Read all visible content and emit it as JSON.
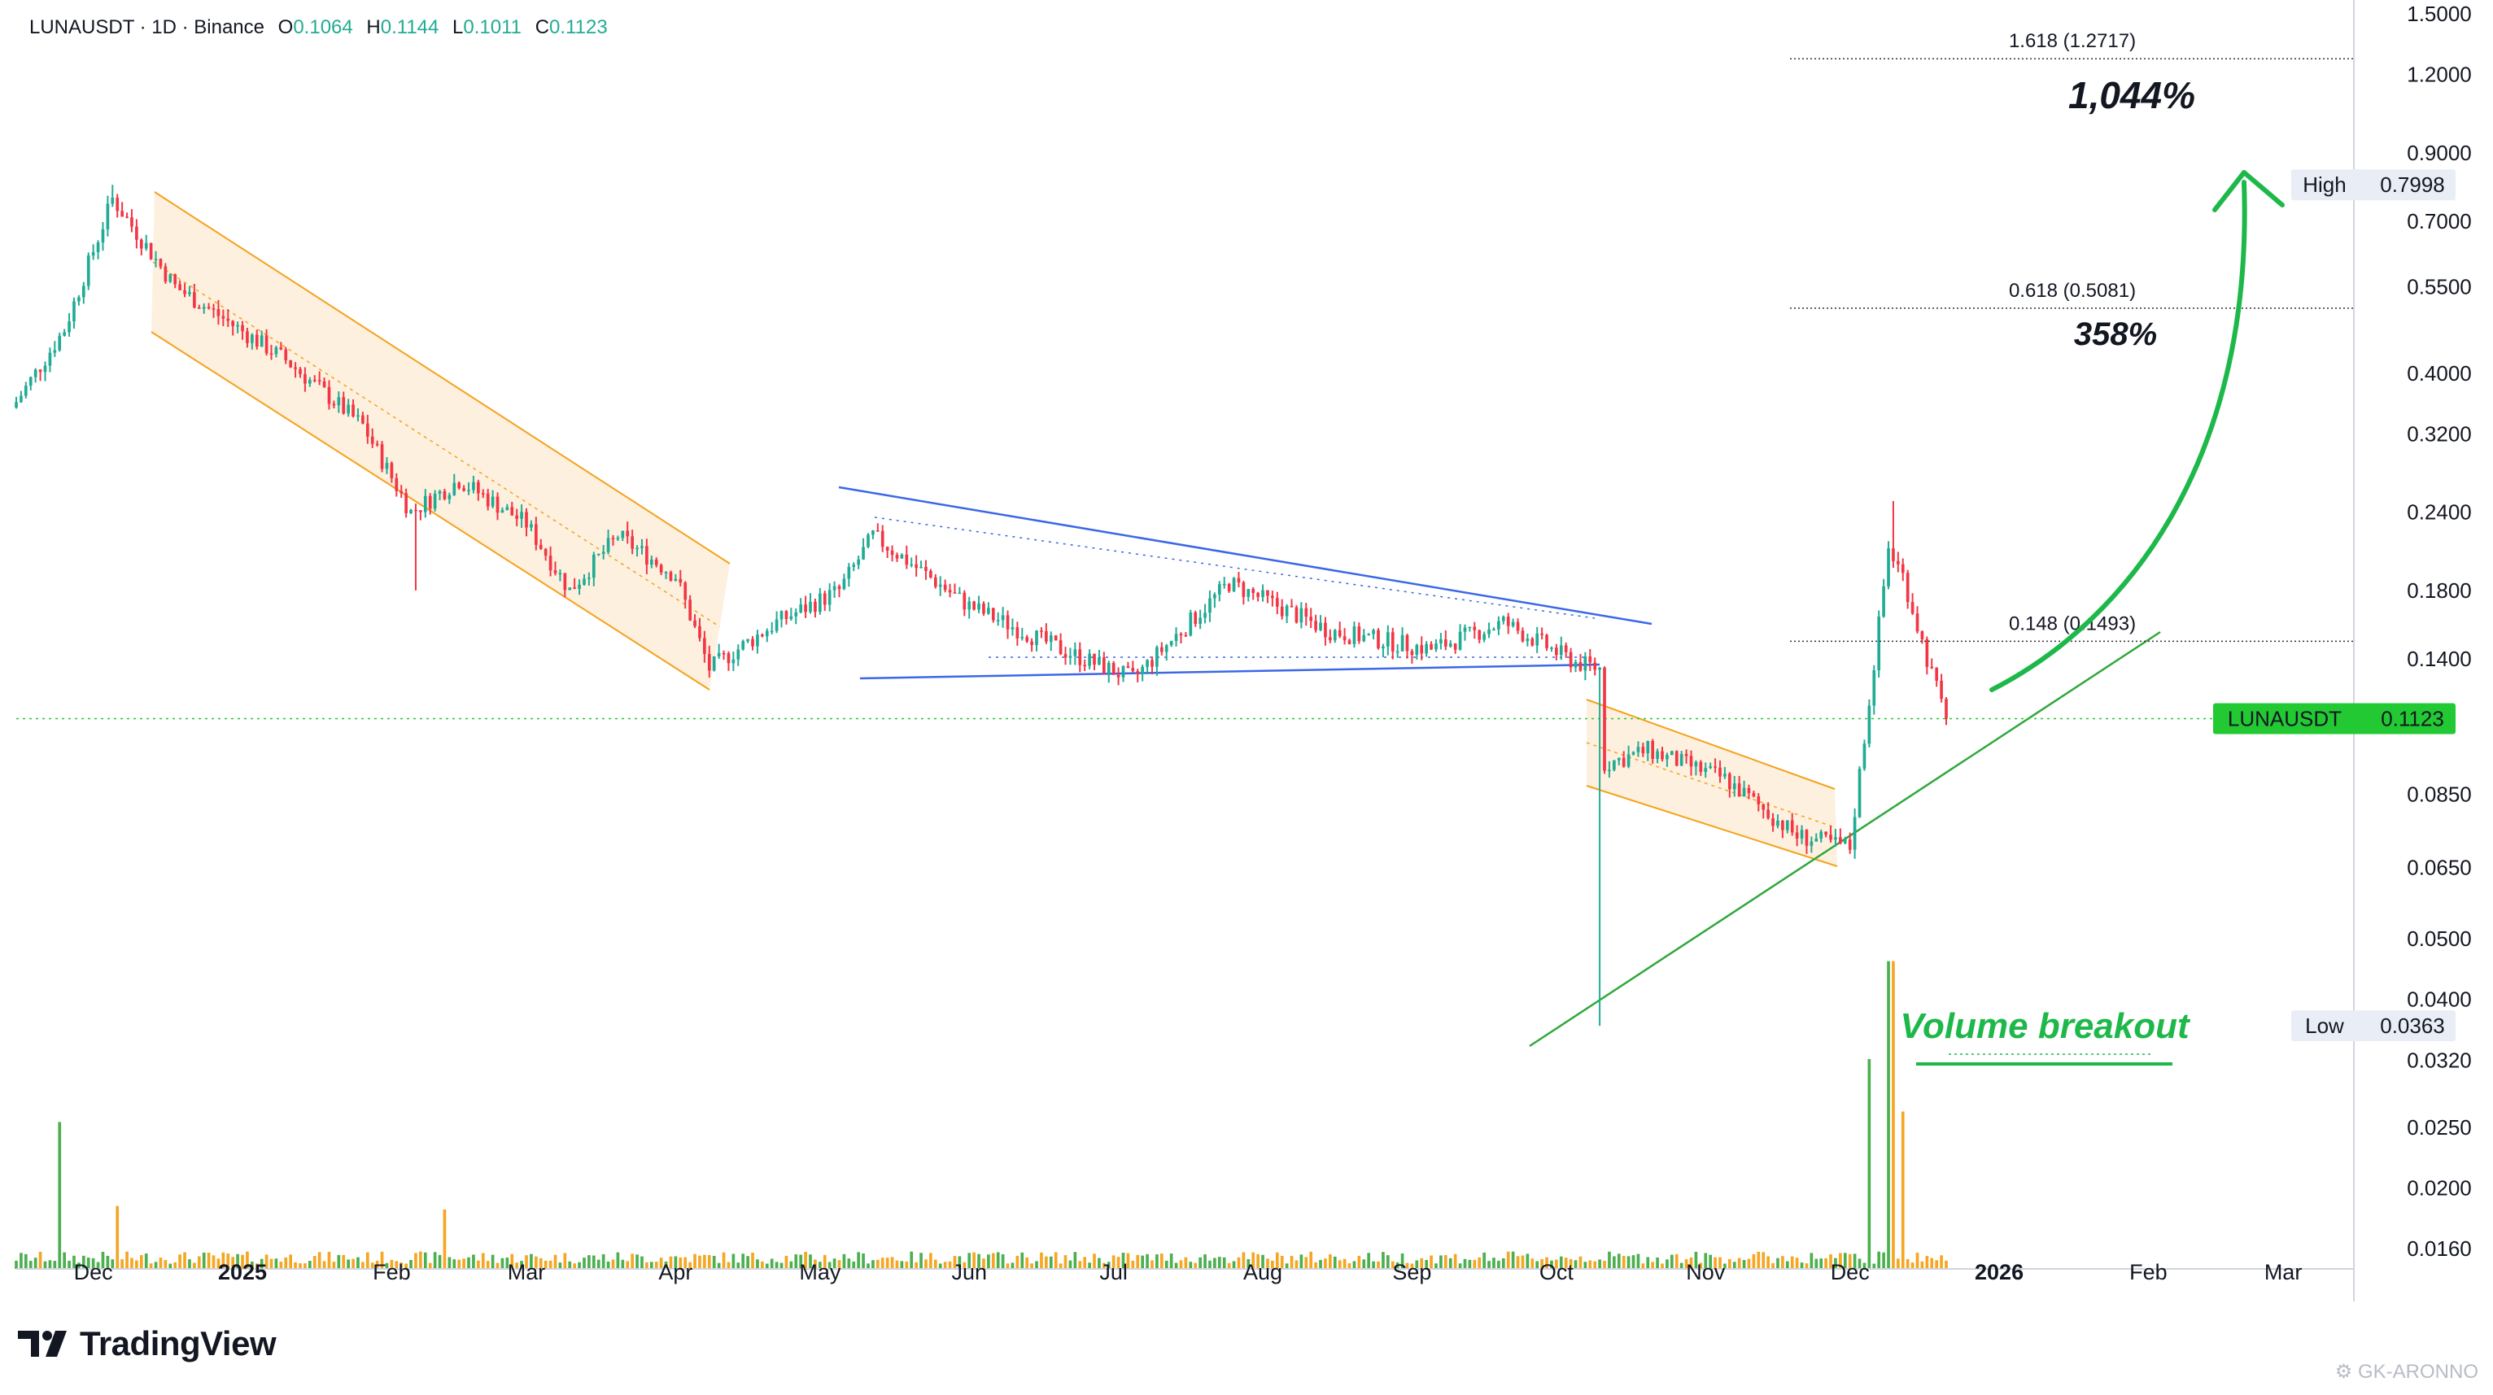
{
  "header": {
    "symbol_line": "LUNAUSDT · 1D · Binance",
    "open_label": "O",
    "open_value": "0.1064",
    "high_label": "H",
    "high_value": "0.1144",
    "low_label": "L",
    "low_value": "0.1011",
    "close_label": "C",
    "close_value": "0.1123"
  },
  "colors": {
    "up": "#22ab94",
    "down": "#f23645",
    "price_tag": "#22c933",
    "annotation_green": "#1eb84a",
    "channel": "#f5a21b",
    "wedge": "#3b67e8"
  },
  "chart_data": {
    "type": "candlestick",
    "yscale": "log",
    "ylim": [
      0.0135,
      1.5
    ],
    "x_ticks": [
      "Dec",
      "2025",
      "Feb",
      "Mar",
      "Apr",
      "May",
      "Jun",
      "Jul",
      "Aug",
      "Sep",
      "Oct",
      "Nov",
      "Dec",
      "2026",
      "Feb",
      "Mar"
    ],
    "y_ticks": [
      "1.5000",
      "1.2000",
      "0.9000",
      "0.7000",
      "0.5500",
      "0.4000",
      "0.3200",
      "0.2400",
      "0.1800",
      "0.1400",
      "0.0850",
      "0.0650",
      "0.0500",
      "0.0400",
      "0.0320",
      "0.0250",
      "0.0200",
      "0.0160"
    ],
    "price_anchors": [
      {
        "date": "2024-11-15",
        "price": 0.36
      },
      {
        "date": "2024-11-25",
        "price": 0.47
      },
      {
        "date": "2024-12-05",
        "price": 0.76
      },
      {
        "date": "2024-12-18",
        "price": 0.55
      },
      {
        "date": "2025-01-10",
        "price": 0.42
      },
      {
        "date": "2025-01-26",
        "price": 0.33
      },
      {
        "date": "2025-02-05",
        "price": 0.24
      },
      {
        "date": "2025-02-15",
        "price": 0.27
      },
      {
        "date": "2025-03-01",
        "price": 0.23
      },
      {
        "date": "2025-03-10",
        "price": 0.18
      },
      {
        "date": "2025-03-20",
        "price": 0.22
      },
      {
        "date": "2025-04-01",
        "price": 0.19
      },
      {
        "date": "2025-04-08",
        "price": 0.135
      },
      {
        "date": "2025-04-22",
        "price": 0.16
      },
      {
        "date": "2025-05-05",
        "price": 0.18
      },
      {
        "date": "2025-05-12",
        "price": 0.22
      },
      {
        "date": "2025-06-01",
        "price": 0.17
      },
      {
        "date": "2025-06-20",
        "price": 0.145
      },
      {
        "date": "2025-07-05",
        "price": 0.13
      },
      {
        "date": "2025-07-25",
        "price": 0.185
      },
      {
        "date": "2025-08-15",
        "price": 0.155
      },
      {
        "date": "2025-09-05",
        "price": 0.145
      },
      {
        "date": "2025-09-20",
        "price": 0.16
      },
      {
        "date": "2025-10-05",
        "price": 0.138
      },
      {
        "date": "2025-10-10",
        "price": 0.135
      },
      {
        "date": "2025-10-11",
        "price": 0.095
      },
      {
        "date": "2025-10-20",
        "price": 0.1
      },
      {
        "date": "2025-11-05",
        "price": 0.09
      },
      {
        "date": "2025-11-20",
        "price": 0.073
      },
      {
        "date": "2025-12-01",
        "price": 0.07
      },
      {
        "date": "2025-12-05",
        "price": 0.12
      },
      {
        "date": "2025-12-09",
        "price": 0.21
      },
      {
        "date": "2025-12-12",
        "price": 0.19
      },
      {
        "date": "2025-12-17",
        "price": 0.14
      },
      {
        "date": "2025-12-21",
        "price": 0.1123
      }
    ],
    "notable_wicks": [
      {
        "date": "2024-12-05",
        "high": 0.7998
      },
      {
        "date": "2025-02-06",
        "low": 0.18
      },
      {
        "date": "2025-10-10",
        "low": 0.0363
      },
      {
        "date": "2025-12-10",
        "high": 0.25
      }
    ],
    "volume_spikes": [
      {
        "date": "2024-11-24",
        "level": 0.42
      },
      {
        "date": "2024-12-06",
        "level": 0.18
      },
      {
        "date": "2025-02-12",
        "level": 0.17
      },
      {
        "date": "2025-12-05",
        "level": 0.6
      },
      {
        "date": "2025-12-09",
        "level": 0.88
      },
      {
        "date": "2025-12-10",
        "level": 0.88
      },
      {
        "date": "2025-12-12",
        "level": 0.45
      }
    ],
    "last_price": 0.1123,
    "high": 0.7998,
    "low": 0.0363,
    "fib_levels": [
      {
        "label": "1.618 (1.2717)",
        "price": 1.2717
      },
      {
        "label": "0.618 (0.5081)",
        "price": 0.5081
      },
      {
        "label": "0.148 (0.1493)",
        "price": 0.1493
      }
    ],
    "annotations": [
      "1,044%",
      "358%",
      "Volume breakout"
    ]
  },
  "price_tags": {
    "symbol": "LUNAUSDT",
    "last": "0.1123",
    "high_label": "High",
    "high_value": "0.7998",
    "low_label": "Low",
    "low_value": "0.0363"
  },
  "footer": {
    "logo_text": "TradingView",
    "watermark": "GK-ARONNO"
  }
}
